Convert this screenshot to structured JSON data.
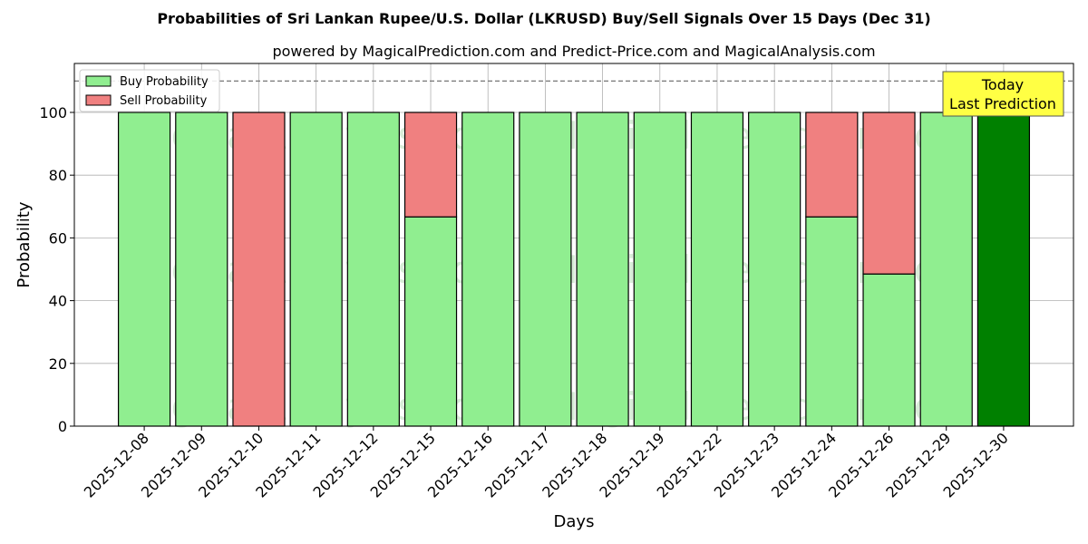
{
  "chart_data": {
    "type": "bar",
    "stacked": true,
    "title": "Probabilities of Sri Lankan Rupee/U.S. Dollar (LKRUSD) Buy/Sell Signals Over 15 Days (Dec 31)",
    "subtitle": "powered by MagicalPrediction.com and Predict-Price.com and MagicalAnalysis.com",
    "xlabel": "Days",
    "ylabel": "Probability",
    "ylim": [
      0,
      115.6
    ],
    "yticks": [
      0,
      20,
      40,
      60,
      80,
      100
    ],
    "grid": true,
    "legend_position": "top-left",
    "categories": [
      "2025-12-08",
      "2025-12-09",
      "2025-12-10",
      "2025-12-11",
      "2025-12-12",
      "2025-12-15",
      "2025-12-16",
      "2025-12-17",
      "2025-12-18",
      "2025-12-19",
      "2025-12-22",
      "2025-12-23",
      "2025-12-24",
      "2025-12-26",
      "2025-12-29",
      "2025-12-30"
    ],
    "series": [
      {
        "name": "Buy Probability",
        "color": "#90ee90",
        "values": [
          100,
          100,
          0,
          100,
          100,
          66.7,
          100,
          100,
          100,
          100,
          100,
          100,
          66.7,
          48.5,
          100,
          100
        ]
      },
      {
        "name": "Sell Probability",
        "color": "#f08080",
        "values": [
          0,
          0,
          100,
          0,
          0,
          33.3,
          0,
          0,
          0,
          0,
          0,
          0,
          33.3,
          51.5,
          0,
          0
        ]
      }
    ],
    "highlight": {
      "index": 15,
      "color": "#008000"
    },
    "reference_line": {
      "y": 110,
      "style": "dashed"
    },
    "annotation": {
      "line1": "Today",
      "line2": "Last Prediction",
      "color": "#ffff44"
    },
    "watermarks": [
      "MagicalAnalysis.com",
      "MagicalPrediction.com"
    ]
  }
}
